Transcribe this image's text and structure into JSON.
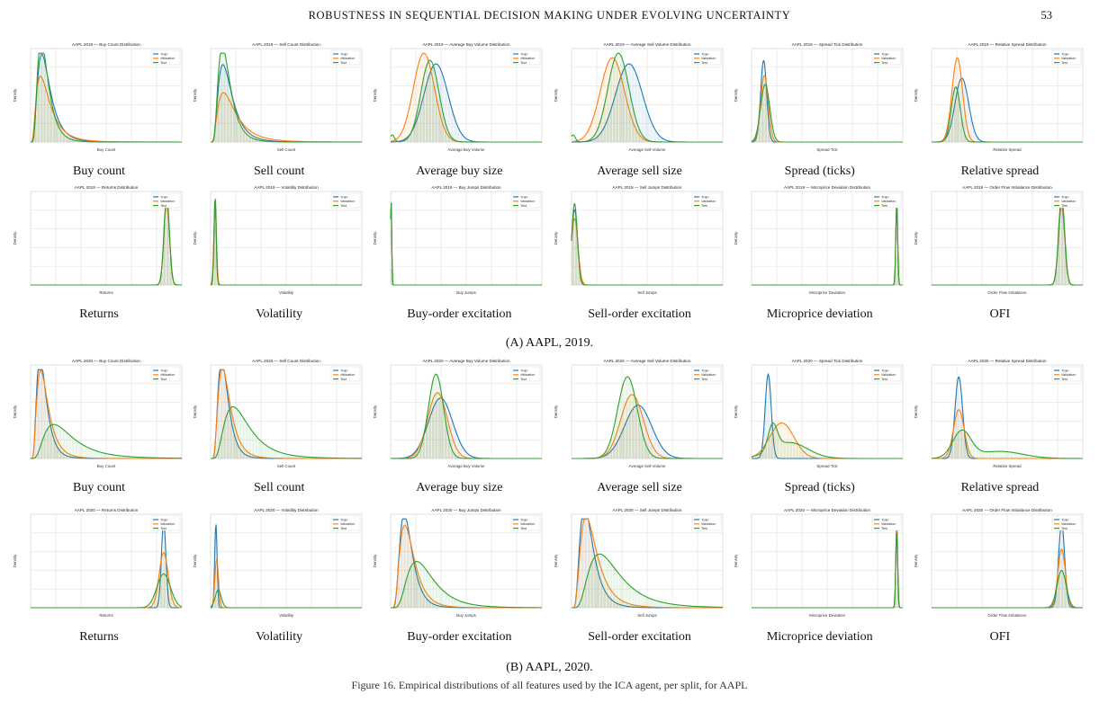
{
  "header": {
    "title": "ROBUSTNESS IN SEQUENTIAL DECISION MAKING UNDER EVOLVING UNCERTAINTY",
    "page": "53"
  },
  "legend": [
    "Train",
    "Validation",
    "Test"
  ],
  "series_colors": {
    "Train": "#1f77b4",
    "Validation": "#ff7f0e",
    "Test": "#2ca02c"
  },
  "subfigures": [
    {
      "label": "(A) AAPL, 2019.",
      "year": "2019",
      "row1": [
        {
          "title": "AAPL 2019 — Buy Count Distribution",
          "xlabel": "Buy Count",
          "caption": "Buy count"
        },
        {
          "title": "AAPL 2019 — Sell Count Distribution",
          "xlabel": "Sell Count",
          "caption": "Sell count"
        },
        {
          "title": "AAPL 2019 — Average Buy Volume Distribution",
          "xlabel": "Average Buy Volume",
          "caption": "Average buy size"
        },
        {
          "title": "AAPL 2019 — Average Sell Volume Distribution",
          "xlabel": "Average Sell Volume",
          "caption": "Average sell size"
        },
        {
          "title": "AAPL 2019 — Spread Tick Distribution",
          "xlabel": "Spread Tick",
          "caption": "Spread (ticks)"
        },
        {
          "title": "AAPL 2019 — Relative Spread Distribution",
          "xlabel": "Relative Spread",
          "caption": "Relative spread"
        }
      ],
      "row2": [
        {
          "title": "AAPL 2019 — Returns Distribution",
          "xlabel": "Returns",
          "caption": "Returns"
        },
        {
          "title": "AAPL 2019 — Volatility Distribution",
          "xlabel": "Volatility",
          "caption": "Volatility"
        },
        {
          "title": "AAPL 2019 — Buy Jumps Distribution",
          "xlabel": "Buy Jumps",
          "caption": "Buy-order excitation"
        },
        {
          "title": "AAPL 2019 — Sell Jumps Distribution",
          "xlabel": "Sell Jumps",
          "caption": "Sell-order excitation"
        },
        {
          "title": "AAPL 2019 — Microprice Deviation Distribution",
          "xlabel": "Microprice Deviation",
          "caption": "Microprice deviation"
        },
        {
          "title": "AAPL 2019 — Order Flow Imbalance Distribution",
          "xlabel": "Order Flow Imbalance",
          "caption": "OFI"
        }
      ]
    },
    {
      "label": "(B) AAPL, 2020.",
      "year": "2020",
      "row1": [
        {
          "title": "AAPL 2020 — Buy Count Distribution",
          "xlabel": "Buy Count",
          "caption": "Buy count"
        },
        {
          "title": "AAPL 2020 — Sell Count Distribution",
          "xlabel": "Sell Count",
          "caption": "Sell count"
        },
        {
          "title": "AAPL 2020 — Average Buy Volume Distribution",
          "xlabel": "Average Buy Volume",
          "caption": "Average buy size"
        },
        {
          "title": "AAPL 2020 — Average Sell Volume Distribution",
          "xlabel": "Average Sell Volume",
          "caption": "Average sell size"
        },
        {
          "title": "AAPL 2020 — Spread Tick Distribution",
          "xlabel": "Spread Tick",
          "caption": "Spread (ticks)"
        },
        {
          "title": "AAPL 2020 — Relative Spread Distribution",
          "xlabel": "Relative Spread",
          "caption": "Relative spread"
        }
      ],
      "row2": [
        {
          "title": "AAPL 2020 — Returns Distribution",
          "xlabel": "Returns",
          "caption": "Returns"
        },
        {
          "title": "AAPL 2020 — Volatility Distribution",
          "xlabel": "Volatility",
          "caption": "Volatility"
        },
        {
          "title": "AAPL 2020 — Buy Jumps Distribution",
          "xlabel": "Buy Jumps",
          "caption": "Buy-order excitation"
        },
        {
          "title": "AAPL 2020 — Sell Jumps Distribution",
          "xlabel": "Sell Jumps",
          "caption": "Sell-order excitation"
        },
        {
          "title": "AAPL 2020 — Microprice Deviation Distribution",
          "xlabel": "Microprice Deviation",
          "caption": "Microprice deviation"
        },
        {
          "title": "AAPL 2020 — Order Flow Imbalance Distribution",
          "xlabel": "Order Flow Imbalance",
          "caption": "OFI"
        }
      ]
    }
  ],
  "footer_text": "Figure 16. Empirical distributions of all features used by the ICA agent, per split, for AAPL"
}
